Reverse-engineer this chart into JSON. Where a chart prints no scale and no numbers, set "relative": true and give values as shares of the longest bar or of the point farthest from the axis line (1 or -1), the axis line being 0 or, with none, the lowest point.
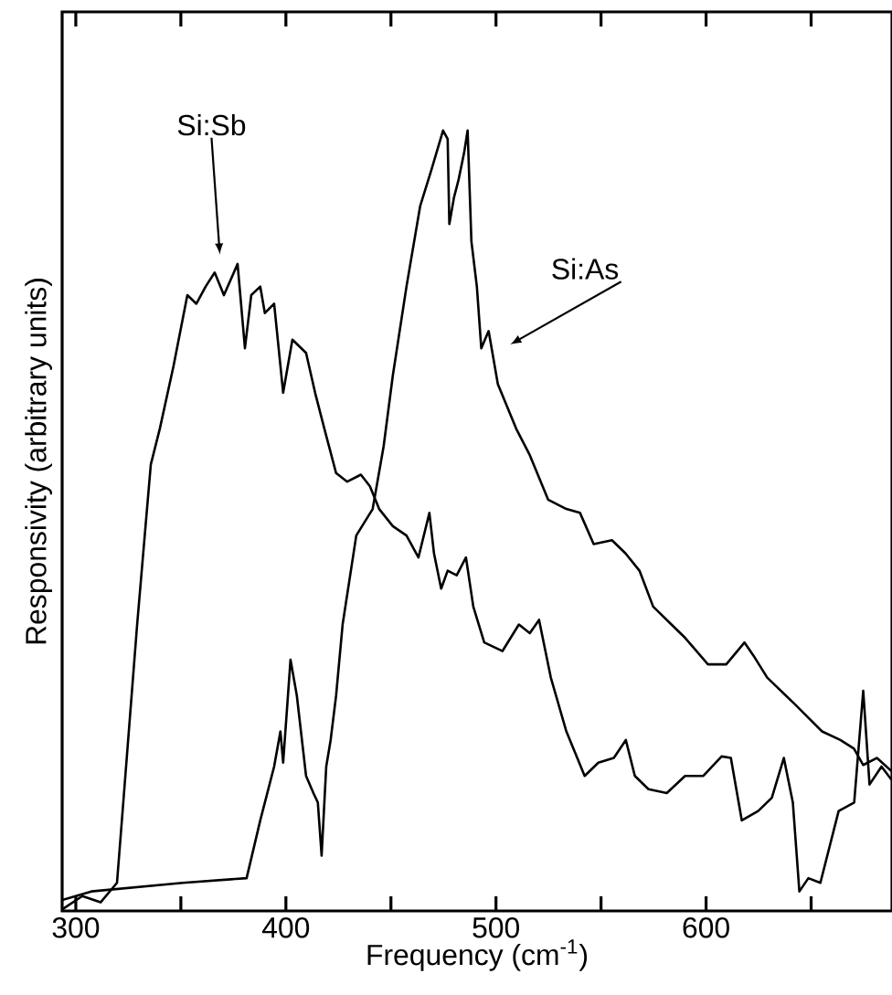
{
  "chart_data": {
    "type": "line",
    "relative": true,
    "xlabel": "Frequency (cm$^{-1}$)",
    "ylabel": "Responsivity   (arbitrary units)",
    "xlim": [
      293.5,
      688.5
    ],
    "xticks": [
      300,
      {
        "value": 350,
        "label": null
      },
      400,
      {
        "value": 450,
        "label": null
      },
      500,
      {
        "value": 550,
        "label": null
      },
      600,
      {
        "value": 650,
        "label": null
      }
    ],
    "color": "#000000",
    "annotations": [
      "Si:Sb",
      "Si:As"
    ],
    "series": [
      {
        "x": [
          293.5,
          303.1,
          311.8,
          319.6,
          322.6,
          329.2,
          335.7,
          340.0,
          346.5,
          353.1,
          357.4,
          361.8,
          366.1,
          370.5,
          377.0,
          380.5,
          383.5,
          387.8,
          390.0,
          394.4,
          398.7,
          403.1,
          409.6,
          413.9,
          418.3,
          423.9,
          429.2,
          435.7,
          440.0,
          444.4,
          450.9,
          457.4,
          463.1,
          468.3,
          470.5,
          473.9,
          477.0,
          481.3,
          485.7,
          489.2,
          494.4,
          503.1,
          510.9,
          516.1,
          520.5,
          526.1,
          533.5,
          542.2,
          548.7,
          556.1,
          561.8,
          566.1,
          572.6,
          581.3,
          590.0,
          598.7,
          607.4,
          611.8,
          617.0,
          624.8,
          631.3,
          637.0,
          641.3,
          644.4,
          648.7,
          654.4,
          663.1,
          670.5,
          674.8,
          677.8,
          683.5,
          688.3
        ],
        "values": [
          0.002,
          0.019,
          0.011,
          0.036,
          0.139,
          0.367,
          0.572,
          0.618,
          0.698,
          0.789,
          0.778,
          0.8,
          0.818,
          0.789,
          0.829,
          0.721,
          0.789,
          0.8,
          0.766,
          0.778,
          0.664,
          0.732,
          0.715,
          0.664,
          0.618,
          0.561,
          0.55,
          0.559,
          0.544,
          0.515,
          0.493,
          0.481,
          0.453,
          0.51,
          0.458,
          0.413,
          0.436,
          0.43,
          0.453,
          0.39,
          0.344,
          0.333,
          0.367,
          0.356,
          0.373,
          0.299,
          0.23,
          0.173,
          0.19,
          0.196,
          0.219,
          0.173,
          0.156,
          0.151,
          0.173,
          0.173,
          0.198,
          0.196,
          0.116,
          0.128,
          0.145,
          0.196,
          0.139,
          0.025,
          0.042,
          0.036,
          0.128,
          0.139,
          0.282,
          0.162,
          0.185,
          0.168
        ]
      },
      {
        "x": [
          293.5,
          307.4,
          350.9,
          381.3,
          387.8,
          394.4,
          397.4,
          398.7,
          402.2,
          405.2,
          409.6,
          413.1,
          415.2,
          417.0,
          419.2,
          421.3,
          423.9,
          427.0,
          433.5,
          441.3,
          446.5,
          450.9,
          457.4,
          463.9,
          469.2,
          474.8,
          477.0,
          477.8,
          480.0,
          482.2,
          484.8,
          486.5,
          488.3,
          490.9,
          493.0,
          496.5,
          500.9,
          509.6,
          516.1,
          524.8,
          533.5,
          540.0,
          546.5,
          555.2,
          561.7,
          568.3,
          574.8,
          583.5,
          590.0,
          600.9,
          609.6,
          618.3,
          622.6,
          629.1,
          642.2,
          655.2,
          663.9,
          670.4,
          674.8,
          681.3,
          688.3
        ],
        "values": [
          0.014,
          0.025,
          0.036,
          0.042,
          0.116,
          0.185,
          0.23,
          0.19,
          0.322,
          0.276,
          0.173,
          0.151,
          0.139,
          0.071,
          0.185,
          0.219,
          0.276,
          0.367,
          0.481,
          0.515,
          0.595,
          0.686,
          0.8,
          0.903,
          0.949,
          1.0,
          0.989,
          0.88,
          0.914,
          0.937,
          0.971,
          1.0,
          0.858,
          0.8,
          0.721,
          0.743,
          0.675,
          0.618,
          0.584,
          0.527,
          0.515,
          0.51,
          0.47,
          0.475,
          0.458,
          0.436,
          0.39,
          0.367,
          0.35,
          0.316,
          0.316,
          0.344,
          0.327,
          0.299,
          0.265,
          0.23,
          0.219,
          0.208,
          0.187,
          0.196,
          0.179
        ]
      }
    ]
  }
}
